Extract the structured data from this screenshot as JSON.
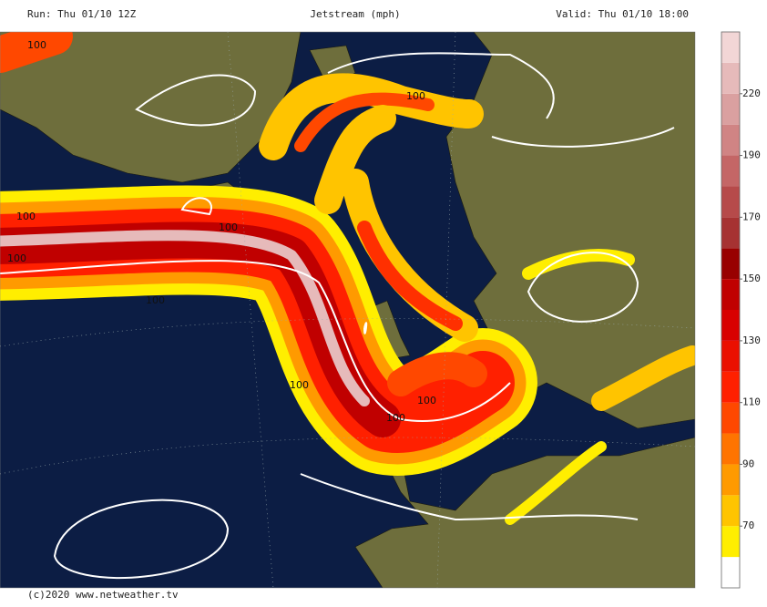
{
  "header": {
    "run": "Run: Thu 01/10 12Z",
    "title": "Jetstream (mph)",
    "valid": "Valid: Thu 01/10 18:00"
  },
  "colorbar": {
    "boundaries": [
      50,
      60,
      70,
      80,
      90,
      100,
      110,
      120,
      130,
      140,
      150,
      160,
      170,
      180,
      190,
      205,
      220,
      235,
      250
    ],
    "colors": [
      "#ffffff",
      "#ffee00",
      "#ffc400",
      "#ff9a00",
      "#ff7400",
      "#ff4800",
      "#ff2000",
      "#ea1000",
      "#d80000",
      "#c00000",
      "#980000",
      "#a63232",
      "#b64a4a",
      "#c46666",
      "#d08484",
      "#daa0a0",
      "#e6baba",
      "#f2d6d6",
      "#fbeaea"
    ],
    "ticks": [
      70,
      90,
      110,
      130,
      150,
      170,
      190,
      220
    ]
  },
  "contour_labels": [
    100,
    100,
    100,
    100,
    100,
    100,
    100,
    100,
    100
  ],
  "footer": "(c)2020 www.netweather.tv"
}
